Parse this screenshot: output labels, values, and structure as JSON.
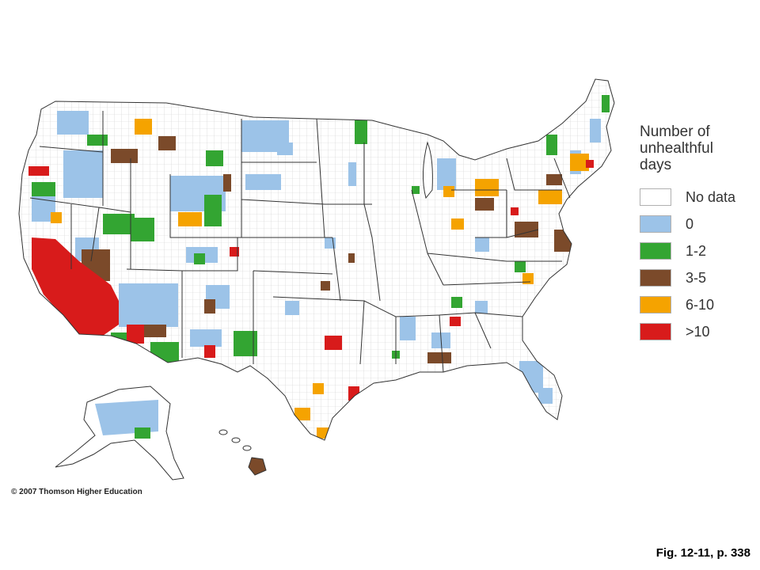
{
  "legend": {
    "title_lines": [
      "Number of",
      "unhealthful",
      "days"
    ],
    "items": [
      {
        "label": "No data",
        "color": "#ffffff"
      },
      {
        "label": "0",
        "color": "#9cc3e8"
      },
      {
        "label": "1-2",
        "color": "#33a532"
      },
      {
        "label": "3-5",
        "color": "#7b4a2a"
      },
      {
        "label": "6-10",
        "color": "#f5a300"
      },
      {
        "label": ">10",
        "color": "#d81b1b"
      }
    ]
  },
  "copyright": "© 2007 Thomson Higher Education",
  "figure_ref": "Fig. 12-11, p. 338",
  "colors": {
    "outline": "#333333",
    "county_lines": "#c8c8c8"
  }
}
